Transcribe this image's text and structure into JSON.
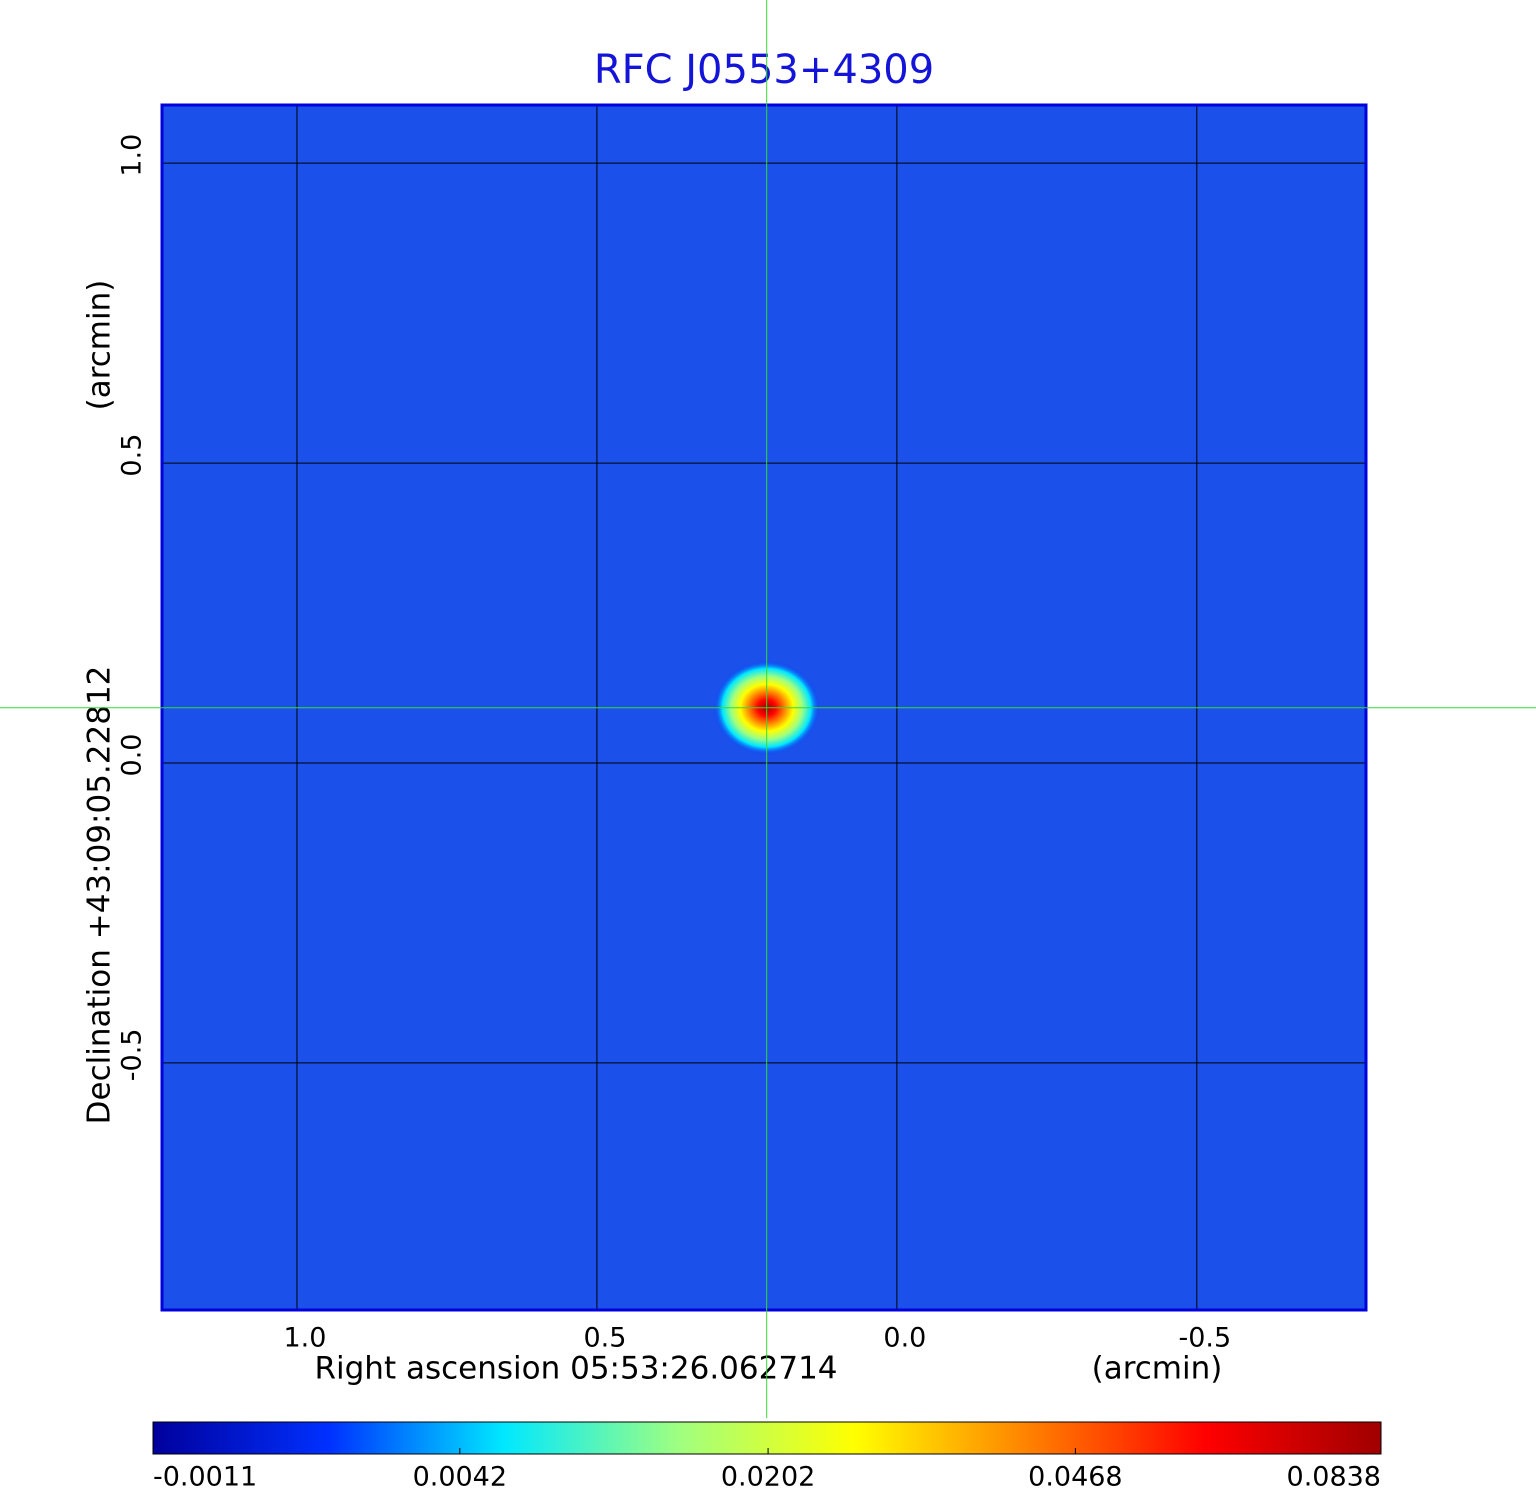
{
  "chart_data": {
    "type": "image",
    "title": "RFC J0553+4309",
    "xlabel": "Right ascension  05:53:26.062714",
    "xunit": "(arcmin)",
    "ylabel": "Declination  +43:09:05.22812",
    "yunit": "(arcmin)",
    "xlim": [
      1.225,
      -0.782
    ],
    "ylim": [
      -0.912,
      1.097
    ],
    "xticks": [
      {
        "value": 1.0,
        "label": "1.0"
      },
      0.5,
      {
        "value": 0.0,
        "label": "0.0"
      },
      -0.5
    ],
    "yticks": [
      {
        "value": 1.0,
        "label": "1.0"
      },
      0.5,
      {
        "value": 0.0,
        "label": "0.0"
      },
      -0.5
    ],
    "grid": true,
    "background_color": "#1b50ea",
    "frame_color": "#0000dd",
    "grid_color": "#000000",
    "crosshair_color": "#33dd33",
    "source": {
      "x": 0.217,
      "y": 0.092,
      "peak": 0.0838
    },
    "colorbar": {
      "lim": [
        -0.0011,
        0.0838
      ],
      "scale": "sqrt",
      "ticks": [
        -0.0011,
        0.0042,
        0.0202,
        0.0468,
        0.0838
      ],
      "colormap": [
        "#00009c",
        "#0030ff",
        "#00e8ff",
        "#a0ff80",
        "#ffff00",
        "#ff8000",
        "#ff0000",
        "#a00000"
      ]
    }
  }
}
